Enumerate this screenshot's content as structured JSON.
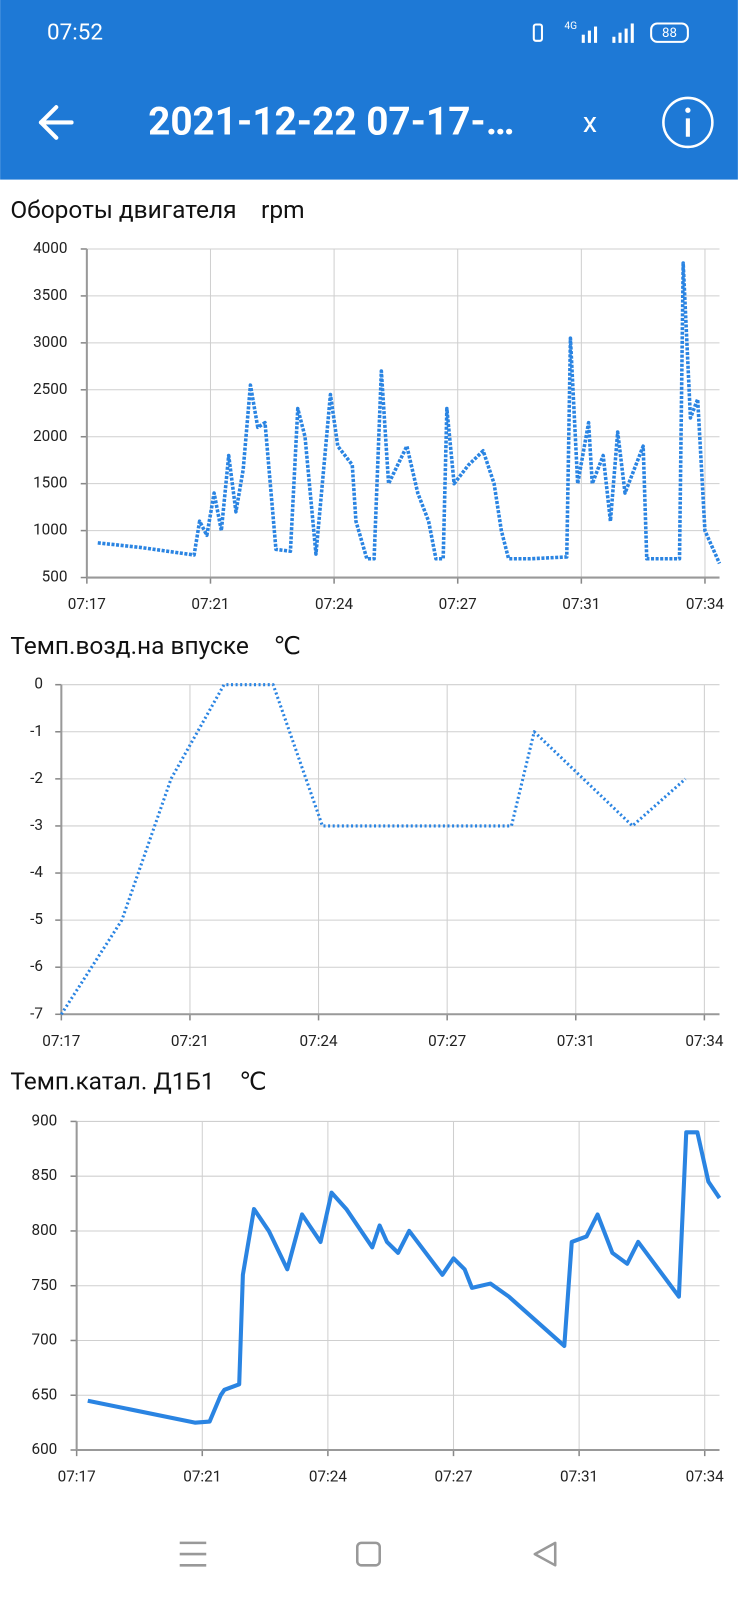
{
  "status_bar": {
    "time": "07:52",
    "network": "4G",
    "battery": "88"
  },
  "app_bar": {
    "title": "2021-12-22 07-17-…",
    "close": "x"
  },
  "chart_data": [
    {
      "type": "line",
      "title": "Обороты двигателя",
      "unit": "rpm",
      "color": "#2a84e2",
      "line_style": "dashed",
      "grid": true,
      "x": [
        437.3,
        438.5,
        439.95,
        440.1,
        440.3,
        440.5,
        440.7,
        440.9,
        441.1,
        441.3,
        441.5,
        441.7,
        441.9,
        442.2,
        442.6,
        442.8,
        443.0,
        443.3,
        443.7,
        443.9,
        444.3,
        444.4,
        444.7,
        444.9,
        445.1,
        445.3,
        445.8,
        446.1,
        446.4,
        446.6,
        446.8,
        446.9,
        447.1,
        447.5,
        447.9,
        448.2,
        448.4,
        448.6,
        449.2,
        450.2,
        450.3,
        450.5,
        450.8,
        450.9,
        451.2,
        451.4,
        451.6,
        451.8,
        452.3,
        452.4,
        453.3,
        453.4,
        453.6,
        453.8,
        454.0,
        454.4
      ],
      "values": [
        870,
        820,
        740,
        1100,
        950,
        1400,
        1000,
        1800,
        1200,
        1650,
        2550,
        2100,
        2150,
        800,
        780,
        2300,
        2000,
        750,
        2450,
        1900,
        1700,
        1100,
        700,
        700,
        2700,
        1500,
        1900,
        1400,
        1100,
        700,
        700,
        2300,
        1500,
        1700,
        1850,
        1500,
        1000,
        700,
        700,
        720,
        3050,
        1500,
        2150,
        1500,
        1800,
        1100,
        2050,
        1400,
        1900,
        700,
        700,
        3850,
        2200,
        2400,
        1000,
        650
      ],
      "xlim": [
        437,
        454.4
      ],
      "ylim": [
        500,
        4000
      ],
      "xticks": [
        {
          "value": 437,
          "label": "07:17"
        },
        {
          "value": 440.4,
          "label": "07:21"
        },
        {
          "value": 443.8,
          "label": "07:24"
        },
        {
          "value": 447.2,
          "label": "07:27"
        },
        {
          "value": 450.6,
          "label": "07:31"
        },
        {
          "value": 454,
          "label": "07:34"
        }
      ],
      "yticks": [
        500,
        1000,
        1500,
        2000,
        2500,
        3000,
        3500,
        4000
      ]
    },
    {
      "type": "line",
      "title": "Темп.возд.на впуске",
      "unit": "℃",
      "color": "#2a84e2",
      "line_style": "dotted",
      "grid": true,
      "x": [
        437,
        438.6,
        439.9,
        441.3,
        442.6,
        443.9,
        448.9,
        449.5,
        452.1,
        453.5
      ],
      "values": [
        -7,
        -5,
        -2,
        0,
        0,
        -3,
        -3,
        -1,
        -3,
        -2
      ],
      "xlim": [
        437,
        454.4
      ],
      "ylim": [
        -7,
        0
      ],
      "xticks": [
        {
          "value": 437,
          "label": "07:17"
        },
        {
          "value": 440.4,
          "label": "07:21"
        },
        {
          "value": 443.8,
          "label": "07:24"
        },
        {
          "value": 447.2,
          "label": "07:27"
        },
        {
          "value": 450.6,
          "label": "07:31"
        },
        {
          "value": 454,
          "label": "07:34"
        }
      ],
      "yticks": [
        -7,
        -6,
        -5,
        -4,
        -3,
        -2,
        -1,
        0
      ]
    },
    {
      "type": "line",
      "title": "Темп.катал. Д1Б1",
      "unit": "℃",
      "color": "#2a84e2",
      "line_style": "solid",
      "grid": true,
      "x": [
        437.3,
        440.2,
        440.6,
        440.9,
        441.0,
        441.4,
        441.5,
        441.8,
        442.2,
        442.7,
        443.1,
        443.3,
        443.6,
        443.9,
        444.3,
        445.0,
        445.2,
        445.4,
        445.7,
        446.0,
        446.9,
        447.2,
        447.5,
        447.7,
        448.2,
        448.7,
        450.2,
        450.4,
        450.8,
        451.1,
        451.5,
        451.9,
        452.2,
        453.3,
        453.5,
        453.8,
        454.1,
        454.4
      ],
      "values": [
        645,
        625,
        626,
        650,
        655,
        660,
        760,
        820,
        800,
        765,
        815,
        805,
        790,
        835,
        820,
        785,
        805,
        790,
        780,
        800,
        760,
        775,
        765,
        748,
        752,
        740,
        695,
        790,
        795,
        815,
        780,
        770,
        790,
        740,
        890,
        890,
        845,
        830
      ],
      "xlim": [
        437,
        454.4
      ],
      "ylim": [
        600,
        900
      ],
      "xticks": [
        {
          "value": 437,
          "label": "07:17"
        },
        {
          "value": 440.4,
          "label": "07:21"
        },
        {
          "value": 443.8,
          "label": "07:24"
        },
        {
          "value": 447.2,
          "label": "07:27"
        },
        {
          "value": 450.6,
          "label": "07:31"
        },
        {
          "value": 454,
          "label": "07:34"
        }
      ],
      "yticks": [
        600,
        650,
        700,
        750,
        800,
        850,
        900
      ]
    }
  ]
}
